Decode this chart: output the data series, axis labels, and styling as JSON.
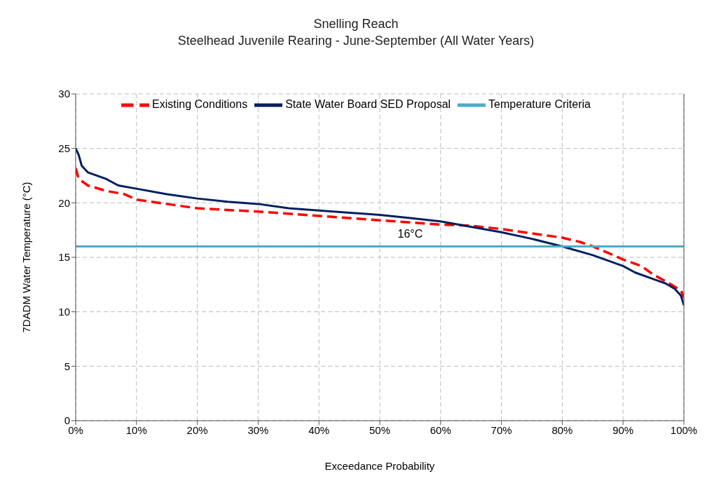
{
  "chart_data": {
    "type": "line",
    "title": "Snelling Reach",
    "subtitle": "Steelhead Juvenile Rearing  - June-September (All Water Years)",
    "xlabel": "Exceedance Probability",
    "ylabel": "7DADM Water Temperature (°C)",
    "xlim": [
      0,
      100
    ],
    "xticks": [
      {
        "value": 0,
        "label": "0%"
      },
      {
        "value": 10,
        "label": "10%"
      },
      {
        "value": 20,
        "label": "20%"
      },
      {
        "value": 30,
        "label": "30%"
      },
      {
        "value": 40,
        "label": "40%"
      },
      {
        "value": 50,
        "label": "50%"
      },
      {
        "value": 60,
        "label": "60%"
      },
      {
        "value": 70,
        "label": "70%"
      },
      {
        "value": 80,
        "label": "80%"
      },
      {
        "value": 90,
        "label": "90%"
      },
      {
        "value": 100,
        "label": "100%"
      }
    ],
    "ylim": [
      0,
      30
    ],
    "yticks": [
      0,
      5,
      10,
      15,
      20,
      25,
      30
    ],
    "grid": true,
    "legend": "top",
    "marker": "none",
    "series": [
      {
        "name": "Existing Conditions",
        "color": "#ff0000",
        "line_style": "dashed",
        "x": [
          0,
          0.5,
          2,
          5,
          8,
          10,
          15,
          20,
          30,
          40,
          50,
          60,
          65,
          70,
          75,
          80,
          83,
          85,
          88,
          90,
          93,
          95,
          97,
          98.5,
          99.5,
          100
        ],
        "values": [
          23.2,
          22.2,
          21.6,
          21.1,
          20.8,
          20.3,
          19.9,
          19.5,
          19.2,
          18.8,
          18.4,
          18.0,
          17.9,
          17.6,
          17.2,
          16.8,
          16.4,
          16.0,
          15.3,
          14.8,
          14.2,
          13.4,
          12.8,
          12.3,
          12.0,
          11.3
        ]
      },
      {
        "name": "State Water Board SED Proposal",
        "color": "#002060",
        "line_style": "solid",
        "x": [
          0,
          0.5,
          1,
          2,
          5,
          7,
          10,
          15,
          20,
          25,
          30,
          35,
          40,
          50,
          55,
          60,
          65,
          70,
          75,
          80,
          85,
          90,
          92,
          95,
          97,
          98.5,
          99.5,
          100
        ],
        "values": [
          25.0,
          24.4,
          23.4,
          22.8,
          22.2,
          21.6,
          21.3,
          20.8,
          20.4,
          20.1,
          19.9,
          19.5,
          19.3,
          18.9,
          18.6,
          18.3,
          17.8,
          17.3,
          16.7,
          16.0,
          15.2,
          14.2,
          13.6,
          13.0,
          12.6,
          12.1,
          11.5,
          10.6
        ]
      },
      {
        "name": "Temperature Criteria",
        "color": "#4bacc6",
        "line_style": "solid",
        "x": [
          0,
          100
        ],
        "values": [
          16,
          16
        ]
      }
    ],
    "annotations": [
      {
        "text": "16°C",
        "x": 55,
        "y": 16
      }
    ]
  }
}
